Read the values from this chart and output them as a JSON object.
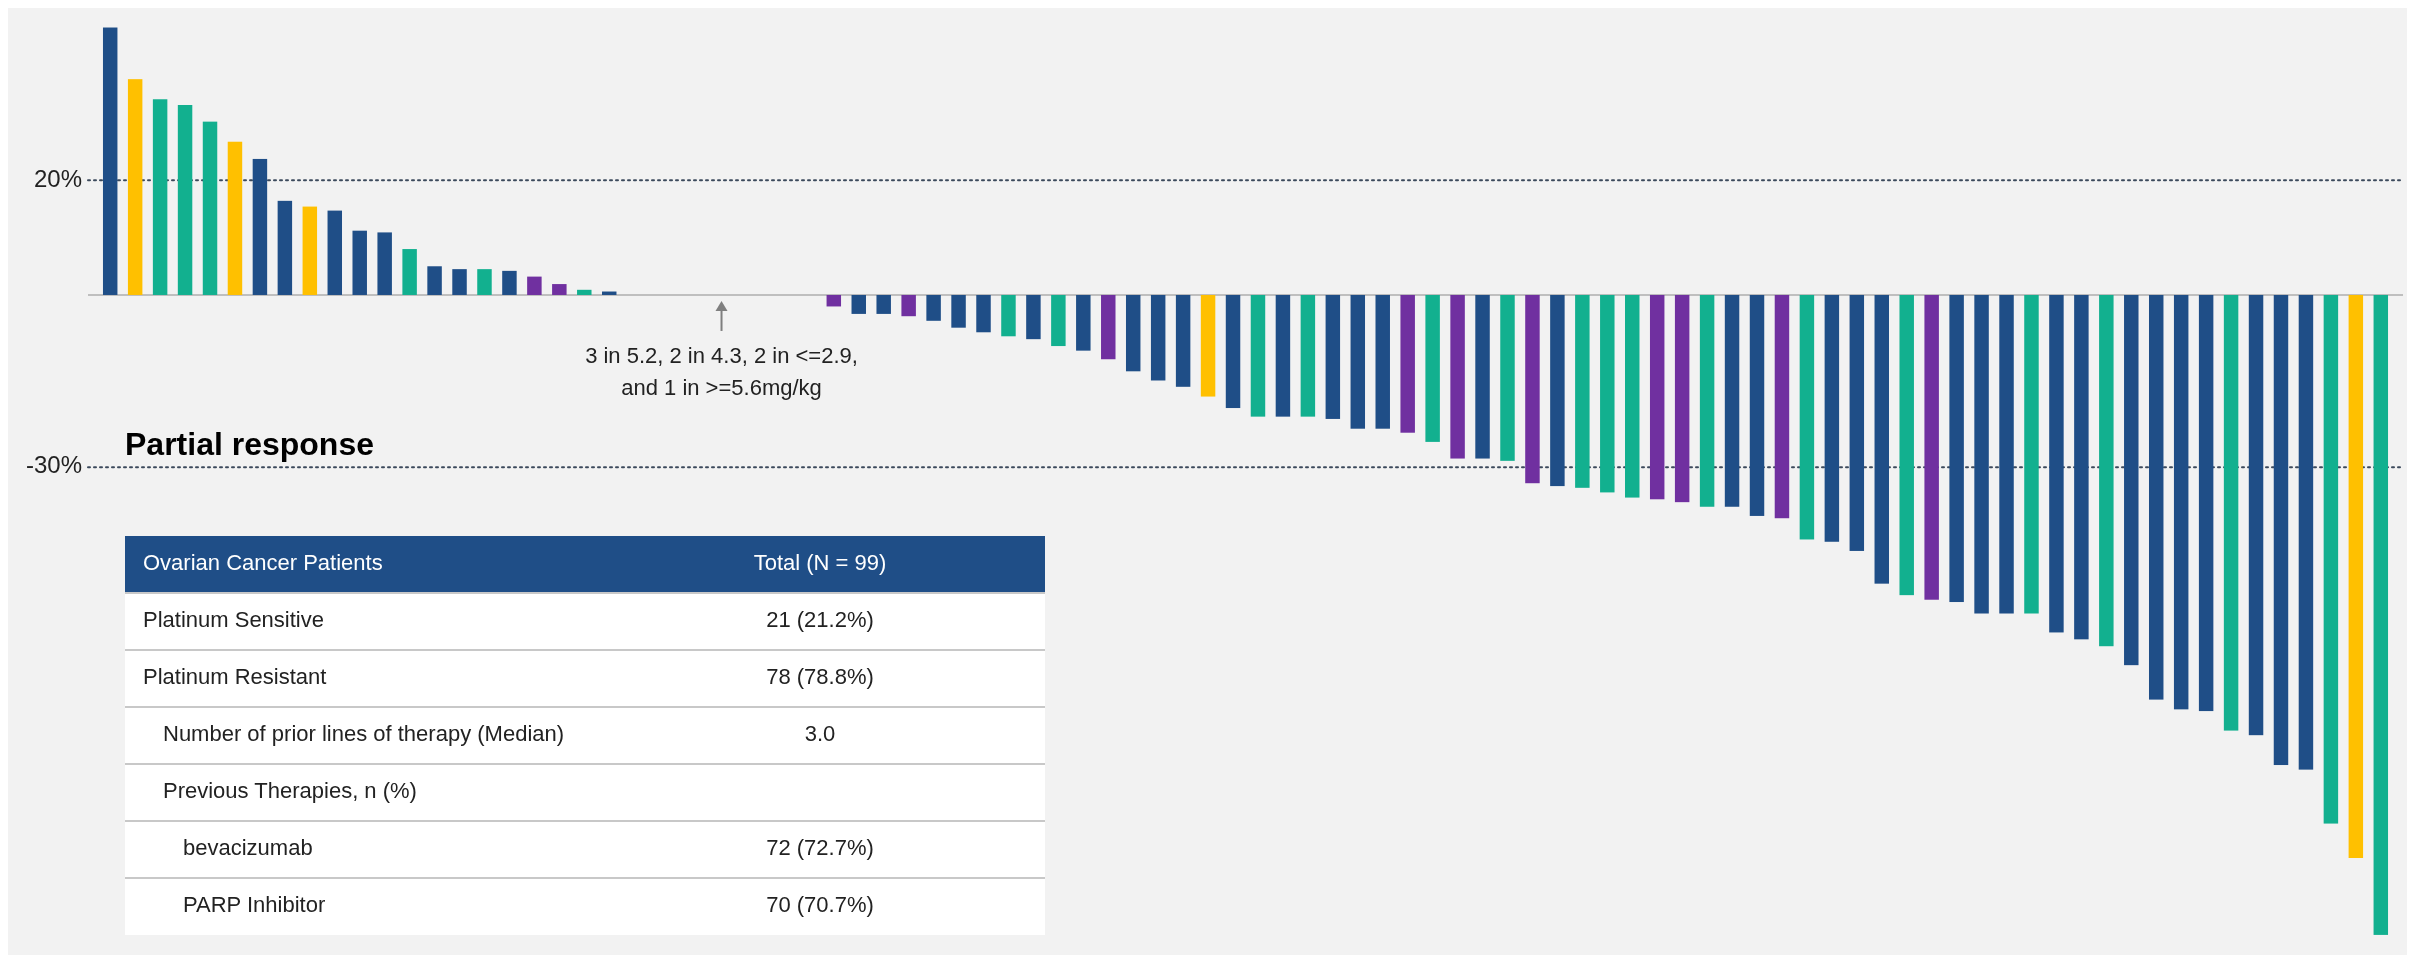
{
  "chart_data": [
    {
      "type": "bar",
      "categories": [
        null,
        null,
        null,
        null,
        null,
        null,
        null,
        null,
        null,
        null,
        null,
        null,
        null,
        null,
        null,
        null,
        null,
        null,
        null,
        null,
        null,
        null,
        null,
        null,
        null,
        null,
        null,
        null,
        null,
        null,
        null,
        null,
        null,
        null,
        null,
        null,
        null,
        null,
        null,
        null,
        null,
        null,
        null,
        null,
        null,
        null,
        null,
        null,
        null,
        null,
        null,
        null,
        null,
        null,
        null,
        null,
        null,
        null,
        null,
        null,
        null,
        null,
        null,
        null,
        null,
        null,
        null,
        null,
        null,
        null,
        null,
        null,
        null,
        null,
        null,
        null,
        null,
        null,
        null,
        null,
        null,
        null,
        null,
        null,
        null,
        null,
        null,
        null,
        null,
        null,
        null,
        null
      ],
      "values": [
        46.6,
        37.6,
        34.1,
        33.1,
        30.2,
        26.7,
        23.7,
        16.4,
        15.4,
        14.7,
        11.2,
        10.9,
        8.0,
        5.0,
        4.5,
        4.5,
        4.2,
        3.2,
        1.9,
        0.9,
        0.6,
        0,
        0,
        0,
        0,
        0,
        0,
        0,
        0,
        -2.0,
        -3.3,
        -3.3,
        -3.7,
        -4.5,
        -5.7,
        -6.5,
        -7.2,
        -7.7,
        -8.9,
        -9.7,
        -11.2,
        -13.3,
        -14.9,
        -16.0,
        -17.7,
        -19.7,
        -21.2,
        -21.2,
        -21.2,
        -21.6,
        -23.3,
        -23.3,
        -24.0,
        -25.6,
        -28.5,
        -28.5,
        -28.9,
        -32.8,
        -33.3,
        -33.6,
        -34.4,
        -35.3,
        -35.6,
        -36.1,
        -36.9,
        -36.9,
        -38.5,
        -38.9,
        -42.6,
        -43.0,
        -44.6,
        -50.3,
        -52.3,
        -53.1,
        -53.5,
        -55.5,
        -55.5,
        -55.5,
        -58.8,
        -60.0,
        -61.2,
        -64.5,
        -70.5,
        -72.2,
        -72.5,
        -75.9,
        -76.7,
        -81.9,
        -82.7,
        -92.1,
        -98.1,
        -111.5
      ],
      "colors": [
        "#1f4e87",
        "#ffc000",
        "#12b08f",
        "#12b08f",
        "#12b08f",
        "#ffc000",
        "#1f4e87",
        "#1f4e87",
        "#ffc000",
        "#1f4e87",
        "#1f4e87",
        "#1f4e87",
        "#12b08f",
        "#1f4e87",
        "#1f4e87",
        "#12b08f",
        "#1f4e87",
        "#7030a0",
        "#7030a0",
        "#12b08f",
        "#1f4e87",
        "#1f4e87",
        "#1f4e87",
        "#1f4e87",
        "#1f4e87",
        "#1f4e87",
        "#1f4e87",
        "#1f4e87",
        "#1f4e87",
        "#7030a0",
        "#1f4e87",
        "#1f4e87",
        "#7030a0",
        "#1f4e87",
        "#1f4e87",
        "#1f4e87",
        "#12b08f",
        "#1f4e87",
        "#12b08f",
        "#1f4e87",
        "#7030a0",
        "#1f4e87",
        "#1f4e87",
        "#1f4e87",
        "#ffc000",
        "#1f4e87",
        "#12b08f",
        "#1f4e87",
        "#12b08f",
        "#1f4e87",
        "#1f4e87",
        "#1f4e87",
        "#7030a0",
        "#12b08f",
        "#7030a0",
        "#1f4e87",
        "#12b08f",
        "#7030a0",
        "#1f4e87",
        "#12b08f",
        "#12b08f",
        "#12b08f",
        "#7030a0",
        "#7030a0",
        "#12b08f",
        "#1f4e87",
        "#1f4e87",
        "#7030a0",
        "#12b08f",
        "#1f4e87",
        "#1f4e87",
        "#1f4e87",
        "#12b08f",
        "#7030a0",
        "#1f4e87",
        "#1f4e87",
        "#1f4e87",
        "#12b08f",
        "#1f4e87",
        "#1f4e87",
        "#12b08f",
        "#1f4e87",
        "#1f4e87",
        "#1f4e87",
        "#1f4e87",
        "#12b08f",
        "#1f4e87",
        "#1f4e87",
        "#1f4e87",
        "#12b08f",
        "#ffc000",
        "#12b08f"
      ],
      "ylim": [
        -115,
        50
      ],
      "yticks": [
        {
          "value": 20,
          "label": "20%"
        },
        {
          "value": -30,
          "label": "-30%"
        }
      ],
      "ref_lines": [
        {
          "axis": "y",
          "value": 20,
          "line_style": "dotted",
          "color": "#3c4a5c"
        },
        {
          "axis": "y",
          "value": -30,
          "label": "Partial response",
          "line_style": "dotted",
          "color": "#3c4a5c"
        }
      ],
      "annotations": [
        "3 in 5.2, 2 in 4.3, 2 in <=2.9,\nand 1 in >=5.6mg/kg"
      ]
    },
    {
      "type": "other",
      "annotations": [
        "Ovarian Cancer Patients",
        "Total (N = 99)",
        "Platinum Sensitive",
        "21 (21.2%)",
        "Platinum Resistant",
        "78 (78.8%)",
        "Number of prior lines of therapy (Median)",
        "3.0",
        "Previous Therapies, n (%)",
        null,
        "bevacizumab",
        "72 (72.7%)",
        "PARP Inhibitor",
        "70 (70.7%)"
      ]
    }
  ]
}
